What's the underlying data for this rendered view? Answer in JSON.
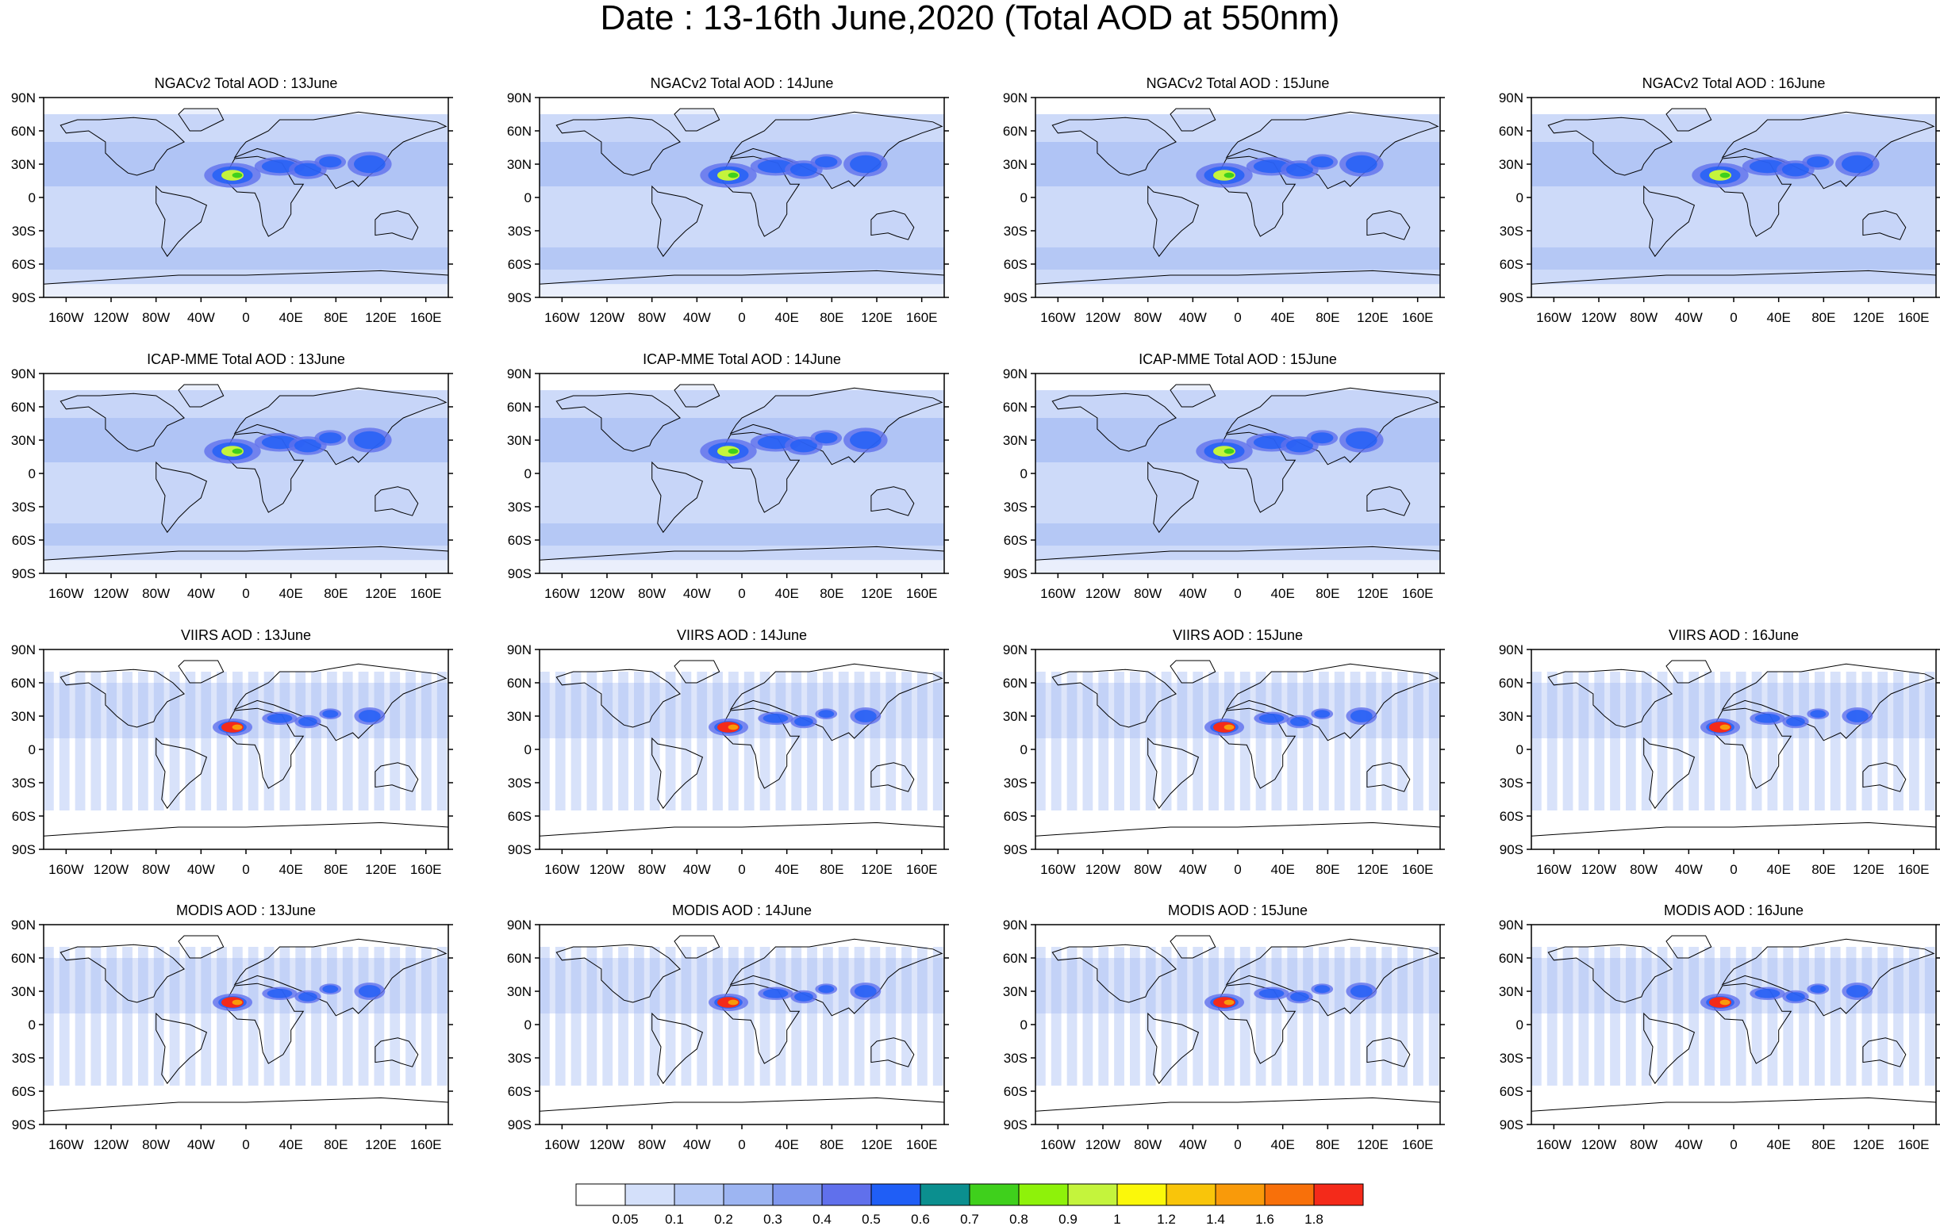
{
  "title": "Date : 13-16th June,2020 (Total AOD at 550nm)",
  "chart_data": {
    "type": "heatmap",
    "layout": "4 rows x 4 columns of global maps",
    "lat_ticks": [
      "90N",
      "60N",
      "30N",
      "0",
      "30S",
      "60S",
      "90S"
    ],
    "lon_ticks": [
      "160W",
      "120W",
      "80W",
      "40W",
      "0",
      "40E",
      "80E",
      "120E",
      "160E"
    ],
    "panels": [
      {
        "title": "NGACv2 Total AOD : 13June",
        "model": "NGACv2",
        "row": 0,
        "col": 0,
        "style": "model"
      },
      {
        "title": "NGACv2 Total AOD : 14June",
        "model": "NGACv2",
        "row": 0,
        "col": 1,
        "style": "model"
      },
      {
        "title": "NGACv2 Total AOD : 15June",
        "model": "NGACv2",
        "row": 0,
        "col": 2,
        "style": "model"
      },
      {
        "title": "NGACv2 Total AOD : 16June",
        "model": "NGACv2",
        "row": 0,
        "col": 3,
        "style": "model"
      },
      {
        "title": "ICAP-MME Total AOD : 13June",
        "model": "ICAP-MME",
        "row": 1,
        "col": 0,
        "style": "model"
      },
      {
        "title": "ICAP-MME Total AOD : 14June",
        "model": "ICAP-MME",
        "row": 1,
        "col": 1,
        "style": "model"
      },
      {
        "title": "ICAP-MME Total AOD : 15June",
        "model": "ICAP-MME",
        "row": 1,
        "col": 2,
        "style": "model"
      },
      {
        "title": "VIIRS AOD : 13June",
        "model": "VIIRS",
        "row": 2,
        "col": 0,
        "style": "satellite"
      },
      {
        "title": "VIIRS AOD : 14June",
        "model": "VIIRS",
        "row": 2,
        "col": 1,
        "style": "satellite"
      },
      {
        "title": "VIIRS AOD : 15June",
        "model": "VIIRS",
        "row": 2,
        "col": 2,
        "style": "satellite"
      },
      {
        "title": "VIIRS AOD : 16June",
        "model": "VIIRS",
        "row": 2,
        "col": 3,
        "style": "satellite"
      },
      {
        "title": "MODIS AOD : 13June",
        "model": "MODIS",
        "row": 3,
        "col": 0,
        "style": "satellite"
      },
      {
        "title": "MODIS AOD : 14June",
        "model": "MODIS",
        "row": 3,
        "col": 1,
        "style": "satellite"
      },
      {
        "title": "MODIS AOD : 15June",
        "model": "MODIS",
        "row": 3,
        "col": 2,
        "style": "satellite"
      },
      {
        "title": "MODIS AOD : 16June",
        "model": "MODIS",
        "row": 3,
        "col": 3,
        "style": "satellite"
      }
    ],
    "colorbar": {
      "levels": [
        "0.05",
        "0.1",
        "0.2",
        "0.3",
        "0.4",
        "0.5",
        "0.6",
        "0.7",
        "0.8",
        "0.9",
        "1",
        "1.2",
        "1.4",
        "1.6",
        "1.8"
      ],
      "colors": [
        "#ffffff",
        "#d4e0fa",
        "#b8cbf6",
        "#9db5f2",
        "#7f97ee",
        "#6070ec",
        "#1f5ef6",
        "#0b8f8f",
        "#3fd01c",
        "#8ef20a",
        "#c4f43c",
        "#fbf80a",
        "#f9c50a",
        "#f99a0a",
        "#f8700a",
        "#f42a1a"
      ]
    },
    "hotspots": [
      {
        "lon": -12,
        "lat": 20,
        "rx": 18,
        "ry": 8
      },
      {
        "lon": 30,
        "lat": 28,
        "rx": 16,
        "ry": 6
      },
      {
        "lon": 55,
        "lat": 25,
        "rx": 12,
        "ry": 6
      },
      {
        "lon": 75,
        "lat": 32,
        "rx": 10,
        "ry": 5
      },
      {
        "lon": 110,
        "lat": 30,
        "rx": 14,
        "ry": 8
      }
    ]
  }
}
